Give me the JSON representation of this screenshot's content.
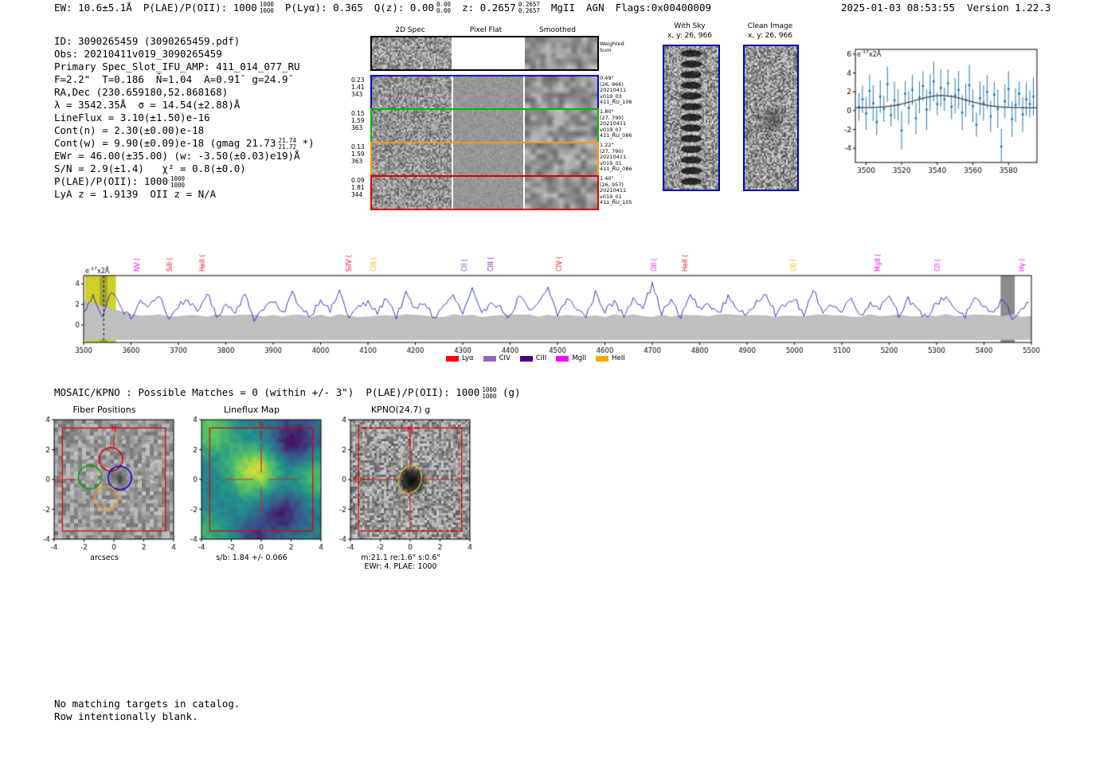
{
  "header": {
    "ew": "EW: 10.6±5.1Å",
    "plae": {
      "pre": "P(LAE)/P(OII): 1000",
      "hi": "1000",
      "lo": "1000"
    },
    "plya": "P(Lyα): 0.365",
    "qz": {
      "pre": "Q(z): 0.00",
      "hi": "0.00",
      "lo": "0.00"
    },
    "z": {
      "pre": "z: 0.2657",
      "hi": "0.2657",
      "lo": "0.2657"
    },
    "classification": "MgII",
    "agn": "AGN",
    "flags": "Flags:0x00400009",
    "timestamp": "2025-01-03 08:53:55",
    "version": "Version 1.22.3"
  },
  "info": {
    "id": "ID: 3090265459 (3090265459.pdf)",
    "obs": "Obs: 20210411v019_3090265459",
    "primary": "Primary Spec_Slot_IFU_AMP: 411_014_077_RU",
    "seeing": "F=2.2\"  T=0.186  N̄=1.04  A=0.9̄1̄  g=24.9̄",
    "radec": "RA,Dec (230.659180,52.868168)",
    "lambda": "λ = 3542.35Å  σ = 14.54(±2.88)Å",
    "lineflux": "LineFlux = 3.10(±1.50)e-16",
    "cont_n": "Cont(n) = 2.30(±0.00)e-18",
    "cont_w": {
      "pre": "Cont(w) = 9.90(±0.09)e-18 (gmag 21.73",
      "hi": "21.74",
      "lo": "21.72",
      "post": "*)"
    },
    "ewr": "EWr = 46.00(±35.00) (w: -3.50(±0.03)e19)Å",
    "sn": "S/N = 2.9(±1.4)   χ² = 0.8(±0.0)",
    "plae": {
      "pre": "P(LAE)/P(OII): 1000",
      "hi": "1000",
      "lo": "1000"
    },
    "lyaz": "LyA z = 1.9139  OII z = N/A"
  },
  "cutout_grid": {
    "col_headers": [
      "2D Spec",
      "Pixel Flat",
      "Smoothed"
    ],
    "weighted_label": [
      "Weighted",
      "Sum"
    ],
    "rows": [
      {
        "color": "#0000dd",
        "left": [
          "0.23",
          "1.41",
          "343"
        ],
        "right": [
          "0.49\"",
          "(26, 966)",
          "20210411",
          "v019_03",
          "411_RU_106"
        ]
      },
      {
        "color": "#00bb00",
        "left": [
          "0.15",
          "1.59",
          "363"
        ],
        "right": [
          "1.80\"",
          "(27, 790)",
          "20210411",
          "v019_07",
          "411_RU_086"
        ]
      },
      {
        "color": "#ff9900",
        "left": [
          "0.13",
          "1.59",
          "363"
        ],
        "right": [
          "1.22\"",
          "(27, 790)",
          "20210411",
          "v019_01",
          "411_RU_086"
        ]
      },
      {
        "color": "#dd0000",
        "left": [
          "0.09",
          "1.81",
          "344"
        ],
        "right": [
          "1.40\"",
          "(26, 957)",
          "20210411",
          "v019_01",
          "411_RU_105"
        ]
      }
    ]
  },
  "panels": {
    "with_sky": {
      "title": "With Sky",
      "coords": "x, y: 26, 966"
    },
    "clean": {
      "title": "Clean Image",
      "coords": "x, y: 26, 966"
    }
  },
  "mosaic": {
    "pre": "MOSAIC/KPNO : Possible Matches = 0 (within +/- 3\")  P(LAE)/P(OII): 1000",
    "hi": "1000",
    "lo": "1000",
    "post": "(g)"
  },
  "cutouts": [
    {
      "title": "Fiber Positions",
      "xlabel": "arcsecs",
      "ticks": [
        -4,
        -2,
        0,
        2,
        4
      ]
    },
    {
      "title": "Lineflux Map",
      "xlabel": "s/b: 1.84 +/- 0.066",
      "ticks": [
        -4,
        -2,
        0,
        2,
        4
      ]
    },
    {
      "title": "KPNO(24.7) g",
      "xlabel": "m:21.1 re:1.6\" s:0.6\"",
      "xlabel2": "EWr: 4. PLAE: 1000",
      "ticks": [
        -4,
        -2,
        0,
        2,
        4
      ]
    }
  ],
  "footer": [
    "No matching targets in catalog.",
    "Row intentionally blank."
  ],
  "chart_data": [
    {
      "type": "scatter",
      "name": "emission-line-zoom-fit",
      "annotation": "e-17x2Å",
      "xlim": [
        3494,
        3596
      ],
      "ylim": [
        -5.5,
        6.5
      ],
      "xticks": [
        3500,
        3520,
        3540,
        3560,
        3580
      ],
      "yticks": [
        -4,
        -2,
        0,
        2,
        4,
        6
      ],
      "x_start": 3496,
      "x_step": 2,
      "y": [
        0.4,
        1.2,
        -0.3,
        2.1,
        0.8,
        -1.2,
        1.5,
        0.2,
        2.8,
        -0.5,
        1.1,
        0.6,
        -2.1,
        1.8,
        0.3,
        2.2,
        -0.8,
        1.4,
        2.6,
        0.1,
        1.9,
        3.1,
        0.7,
        2.4,
        1.2,
        2.9,
        0.4,
        1.6,
        2.2,
        -0.2,
        1.1,
        2.7,
        0.5,
        -1.5,
        1.3,
        0.8,
        2.0,
        -0.6,
        1.7,
        0.2,
        -3.8,
        1.0,
        2.3,
        -0.9,
        0.6,
        1.8,
        -0.4,
        1.2,
        0.7,
        1.5
      ],
      "yerr": 1.7,
      "fit": {
        "center": 3542.35,
        "sigma": 14.54,
        "amplitude": 1.3,
        "baseline": 0.3
      },
      "point_color": "#1f77b4",
      "fit_color": "#444444"
    },
    {
      "type": "line",
      "name": "full-spectrum",
      "annotation": "e-17x2Å",
      "x_start": 3500,
      "x_step": 20,
      "values": [
        1.2,
        2.8,
        0.9,
        3.4,
        1.5,
        0.7,
        2.2,
        1.8,
        3.0,
        0.5,
        1.9,
        2.5,
        1.1,
        3.2,
        0.8,
        2.0,
        1.4,
        2.9,
        0.6,
        1.7,
        2.3,
        1.0,
        3.1,
        1.6,
        0.9,
        2.6,
        1.3,
        3.3,
        0.7,
        1.8,
        2.1,
        1.2,
        2.7,
        0.8,
        3.0,
        1.5,
        2.2,
        0.6,
        1.9,
        2.8,
        1.1,
        3.4,
        0.9,
        2.4,
        1.6,
        0.7,
        2.9,
        1.3,
        2.0,
        3.6,
        1.0,
        2.5,
        1.7,
        0.8,
        3.1,
        1.4,
        2.2,
        0.9,
        2.7,
        1.8,
        3.9,
        1.2,
        2.4,
        0.7,
        3.0,
        1.5,
        2.1,
        1.0,
        2.8,
        1.6,
        0.8,
        2.3,
        3.2,
        1.1,
        1.9,
        2.6,
        0.9,
        3.3,
        1.4,
        2.0,
        1.2,
        2.9,
        0.7,
        2.2,
        1.7,
        3.0,
        1.0,
        2.5,
        1.3,
        0.8,
        2.1,
        2.8,
        1.5,
        0.9,
        2.4,
        1.8,
        1.1,
        2.6,
        0.7,
        1.6,
        2.2
      ],
      "xlim": [
        3500,
        5500
      ],
      "ylim": [
        -1.7,
        4.8
      ],
      "xticks": [
        3500,
        3600,
        3700,
        3800,
        3900,
        4000,
        4100,
        4200,
        4300,
        4400,
        4500,
        4600,
        4700,
        4800,
        4900,
        5000,
        5100,
        5200,
        5300,
        5400,
        5500
      ],
      "yticks": [
        0,
        2,
        4
      ],
      "line_color": "#2222cc",
      "noise_band": {
        "level": 0.92,
        "left_peak": 2.35,
        "bottom": -1.45,
        "color": "#bfbfbf"
      },
      "detect_band": {
        "x0": 3503,
        "x1": 3568,
        "color": "#cfcf28",
        "line": 3542.35
      },
      "sky_band": {
        "x0": 5435,
        "x1": 5465,
        "color": "#8c8c8c"
      },
      "emission_lines": [
        {
          "name": "NV",
          "x": 3613,
          "color": "#ff00ff"
        },
        {
          "name": "SiII",
          "x": 3682,
          "color": "#e8112d"
        },
        {
          "name": "HeII",
          "x": 3752,
          "color": "#e8112d"
        },
        {
          "name": "SiIV",
          "x": 4060,
          "color": "#e8112d"
        },
        {
          "name": "CIII",
          "x": 4113,
          "color": "#ffa500"
        },
        {
          "name": "CII",
          "x": 4305,
          "color": "#9932cc"
        },
        {
          "name": "CIII",
          "x": 4359,
          "color": "#6a0dad"
        },
        {
          "name": "CIV",
          "x": 4505,
          "color": "#e8112d"
        },
        {
          "name": "OII",
          "x": 4705,
          "color": "#ff00ff"
        },
        {
          "name": "HeII",
          "x": 4769,
          "color": "#e8112d"
        },
        {
          "name": "CII",
          "x": 4999,
          "color": "#ffa500"
        },
        {
          "name": "MgII",
          "x": 5177,
          "color": "#ff00ff"
        },
        {
          "name": "CII",
          "x": 5302,
          "color": "#ff00ff"
        },
        {
          "name": "Hγ",
          "x": 5480,
          "color": "#ff00ff"
        }
      ],
      "legend": [
        {
          "label": "Lyα",
          "color": "#ff0000"
        },
        {
          "label": "CIV",
          "color": "#9467bd"
        },
        {
          "label": "CIII",
          "color": "#4b0082"
        },
        {
          "label": "MgII",
          "color": "#ff00ff"
        },
        {
          "label": "HeII",
          "color": "#ffa500"
        }
      ]
    }
  ]
}
